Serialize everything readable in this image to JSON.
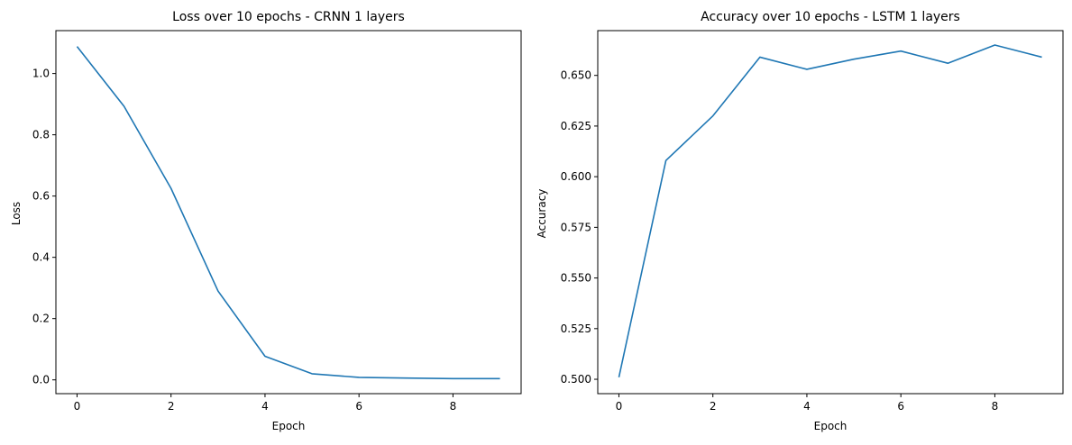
{
  "chart_data": [
    {
      "type": "line",
      "title": "Loss over 10 epochs - CRNN 1 layers",
      "xlabel": "Epoch",
      "ylabel": "Loss",
      "xlim": [
        -0.45,
        9.45
      ],
      "ylim": [
        -0.045,
        1.14
      ],
      "xticks": [
        0,
        2,
        4,
        6,
        8
      ],
      "xtick_labels": [
        "0",
        "2",
        "4",
        "6",
        "8"
      ],
      "yticks": [
        0.0,
        0.2,
        0.4,
        0.6,
        0.8,
        1.0
      ],
      "ytick_labels": [
        "0.0",
        "0.2",
        "0.4",
        "0.6",
        "0.8",
        "1.0"
      ],
      "grid": false,
      "legend": "none",
      "color": "#1f77b4",
      "x": [
        0,
        1,
        2,
        3,
        4,
        5,
        6,
        7,
        8,
        9
      ],
      "series": [
        {
          "values": [
            1.088,
            0.893,
            0.625,
            0.29,
            0.077,
            0.02,
            0.008,
            0.006,
            0.004,
            0.004
          ]
        }
      ]
    },
    {
      "type": "line",
      "title": "Accuracy over 10 epochs - LSTM 1 layers",
      "xlabel": "Epoch",
      "ylabel": "Accuracy",
      "xlim": [
        -0.45,
        9.45
      ],
      "ylim": [
        0.4929,
        0.6721
      ],
      "xticks": [
        0,
        2,
        4,
        6,
        8
      ],
      "xtick_labels": [
        "0",
        "2",
        "4",
        "6",
        "8"
      ],
      "yticks": [
        0.5,
        0.525,
        0.55,
        0.575,
        0.6,
        0.625,
        0.65
      ],
      "ytick_labels": [
        "0.500",
        "0.525",
        "0.550",
        "0.575",
        "0.600",
        "0.625",
        "0.650"
      ],
      "grid": false,
      "legend": "none",
      "color": "#1f77b4",
      "x": [
        0,
        1,
        2,
        3,
        4,
        5,
        6,
        7,
        8,
        9
      ],
      "series": [
        {
          "values": [
            0.501,
            0.608,
            0.63,
            0.659,
            0.653,
            0.658,
            0.662,
            0.656,
            0.665,
            0.659
          ]
        }
      ]
    }
  ]
}
